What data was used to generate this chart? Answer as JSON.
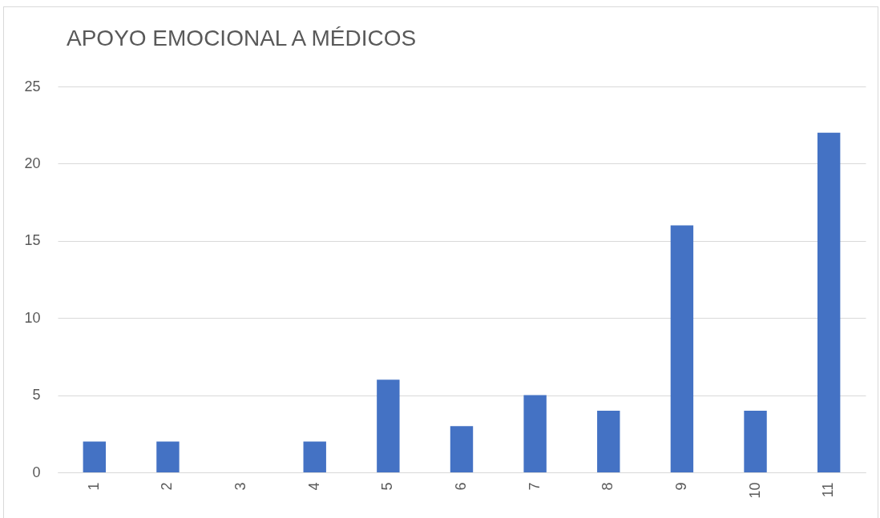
{
  "chart_data": {
    "type": "bar",
    "title": "APOYO EMOCIONAL A MÉDICOS",
    "categories": [
      "1",
      "2",
      "3",
      "4",
      "5",
      "6",
      "7",
      "8",
      "9",
      "10",
      "11"
    ],
    "values": [
      2,
      2,
      0,
      2,
      6,
      3,
      5,
      4,
      16,
      4,
      22
    ],
    "color": "#4472c4",
    "ylim": [
      0,
      25
    ],
    "yticks": [
      0,
      5,
      10,
      15,
      20,
      25
    ],
    "grid": "y"
  }
}
